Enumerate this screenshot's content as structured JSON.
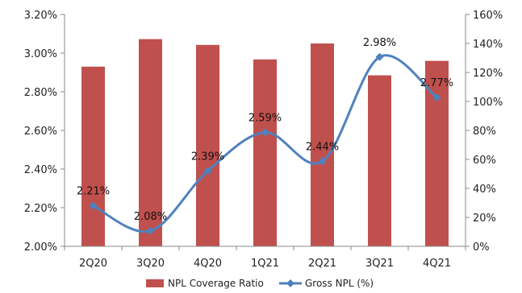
{
  "chart_data": {
    "type": "bar+line",
    "categories": [
      "2Q20",
      "3Q20",
      "4Q20",
      "1Q21",
      "2Q21",
      "3Q21",
      "4Q21"
    ],
    "series": [
      {
        "name": "NPL Coverage Ratio",
        "type": "bar",
        "axis": "right",
        "values": [
          124,
          143,
          139,
          129,
          140,
          118,
          128
        ],
        "color": "#c0504d"
      },
      {
        "name": "Gross NPL (%)",
        "type": "line",
        "axis": "left",
        "values": [
          2.21,
          2.08,
          2.39,
          2.59,
          2.44,
          2.98,
          2.77
        ],
        "labels": [
          "2.21%",
          "2.08%",
          "2.39%",
          "2.59%",
          "2.44%",
          "2.98%",
          "2.77%"
        ],
        "color": "#4f81bd"
      }
    ],
    "left_axis": {
      "ylim": [
        2.0,
        3.2
      ],
      "ticks": [
        "2.00%",
        "2.20%",
        "2.40%",
        "2.60%",
        "2.80%",
        "3.00%",
        "3.20%"
      ]
    },
    "right_axis": {
      "ylim": [
        0,
        160
      ],
      "ticks": [
        "0%",
        "20%",
        "40%",
        "60%",
        "80%",
        "100%",
        "120%",
        "140%",
        "160%"
      ]
    },
    "legend_position": "bottom",
    "grid": false
  }
}
